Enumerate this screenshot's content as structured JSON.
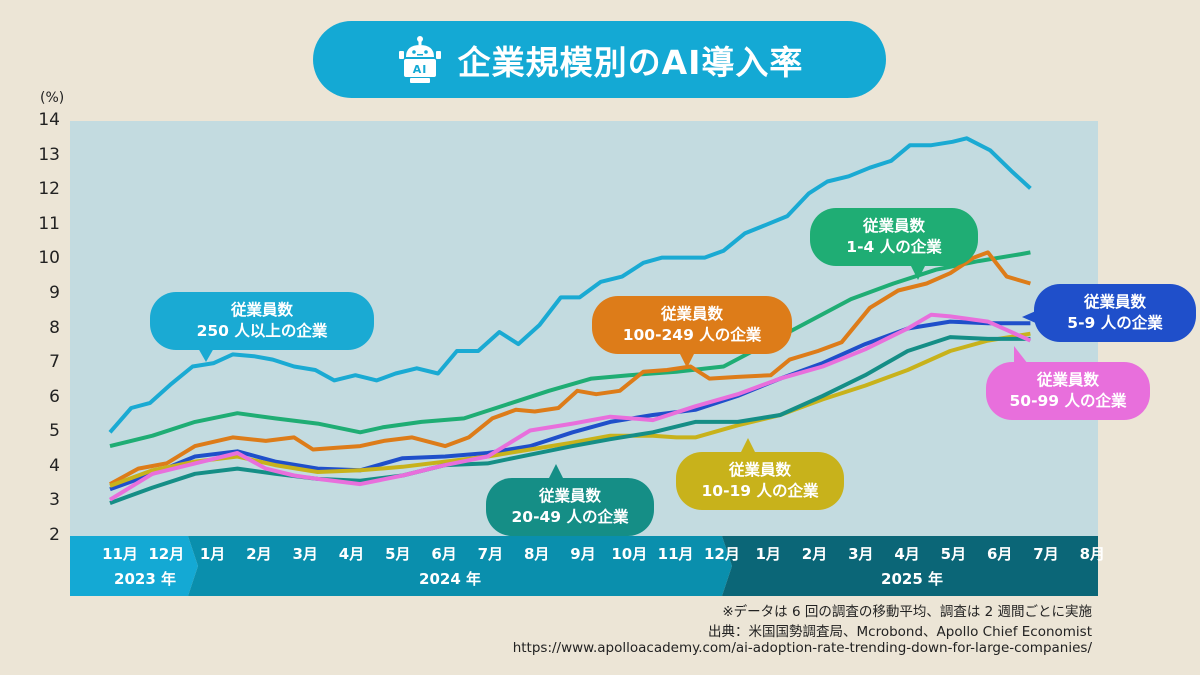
{
  "title": "企業規模別のAI導入率",
  "title_icon": "robot-ai-icon",
  "footnotes": [
    "※データは 6 回の調査の移動平均、調査は 2 週間ごとに実施",
    "出典：米国国勢調査局、Mcrobond、Apollo Chief Economist",
    "https://www.apolloacademy.com/ai-adoption-rate-trending-down-for-large-companies/"
  ],
  "chart_data": {
    "type": "line",
    "title": "企業規模別のAI導入率",
    "ylabel": "(%)",
    "xlabel": "",
    "ylim": [
      2,
      14
    ],
    "yticks": [
      14,
      13,
      12,
      11,
      10,
      9,
      8,
      7,
      6,
      5,
      4,
      3,
      2
    ],
    "grid": false,
    "x_month_labels": [
      "11月",
      "12月",
      "1月",
      "2月",
      "3月",
      "4月",
      "5月",
      "6月",
      "7月",
      "8月",
      "9月",
      "10月",
      "11月",
      "12月",
      "1月",
      "2月",
      "3月",
      "4月",
      "5月",
      "6月",
      "7月",
      "8月"
    ],
    "x_year_labels": [
      {
        "label": "2023 年",
        "months": [
          "11月",
          "12月"
        ]
      },
      {
        "label": "2024 年",
        "months": [
          "1月",
          "2月",
          "3月",
          "4月",
          "5月",
          "6月",
          "7月",
          "8月",
          "9月",
          "10月",
          "11月",
          "12月"
        ]
      },
      {
        "label": "2025 年",
        "months": [
          "1月",
          "2月",
          "3月",
          "4月",
          "5月",
          "6月",
          "7月",
          "8月"
        ]
      }
    ],
    "x_range_months": [
      0,
      21.5
    ],
    "series": [
      {
        "name": "従業員数 250 人以上の企業",
        "label_lines": [
          "従業員数",
          "250 人以上の企業"
        ],
        "color": "#1aaad3",
        "x": [
          0,
          0.45,
          0.85,
          1.3,
          1.75,
          2.2,
          2.6,
          3.05,
          3.45,
          3.9,
          4.35,
          4.75,
          5.2,
          5.65,
          6.05,
          6.5,
          6.95,
          7.35,
          7.8,
          8.25,
          8.65,
          9.1,
          9.55,
          9.95,
          10.4,
          10.85,
          11.3,
          11.7,
          12.15,
          12.6,
          13.0,
          13.45,
          13.9,
          14.35,
          14.8,
          15.2,
          15.65,
          16.1,
          16.55,
          16.95,
          17.4,
          17.85,
          18.15,
          18.65,
          19.1,
          19.5
        ],
        "values": [
          5.0,
          5.7,
          5.85,
          6.4,
          6.9,
          7.0,
          7.25,
          7.2,
          7.1,
          6.9,
          6.8,
          6.5,
          6.65,
          6.5,
          6.7,
          6.85,
          6.7,
          7.35,
          7.35,
          7.9,
          7.55,
          8.1,
          8.9,
          8.9,
          9.35,
          9.5,
          9.9,
          10.05,
          10.05,
          10.05,
          10.25,
          10.75,
          11.0,
          11.25,
          11.9,
          12.25,
          12.4,
          12.65,
          12.85,
          13.3,
          13.3,
          13.4,
          13.5,
          13.15,
          12.55,
          12.05
        ]
      },
      {
        "name": "従業員数 1-4 人の企業",
        "label_lines": [
          "従業員数",
          "1-4 人の企業"
        ],
        "color": "#1fad74",
        "x": [
          0,
          0.9,
          1.8,
          2.7,
          3.5,
          4.4,
          5.3,
          5.8,
          6.6,
          7.5,
          8.4,
          9.3,
          10.2,
          11.0,
          12.0,
          13.0,
          13.9,
          14.8,
          15.7,
          16.6,
          17.5,
          18.4,
          19.3,
          19.5
        ],
        "values": [
          4.6,
          4.9,
          5.3,
          5.55,
          5.4,
          5.25,
          5.0,
          5.15,
          5.3,
          5.4,
          5.8,
          6.2,
          6.55,
          6.65,
          6.75,
          6.9,
          7.55,
          8.2,
          8.85,
          9.3,
          9.7,
          9.95,
          10.15,
          10.2
        ]
      },
      {
        "name": "従業員数 100-249 人の企業",
        "label_lines": [
          "従業員数",
          "100-249 人の企業"
        ],
        "color": "#dd7c19",
        "x": [
          0,
          0.6,
          1.2,
          1.8,
          2.6,
          3.3,
          3.9,
          4.3,
          4.8,
          5.3,
          5.8,
          6.4,
          7.1,
          7.6,
          8.1,
          8.6,
          9.0,
          9.5,
          9.9,
          10.3,
          10.8,
          11.3,
          11.8,
          12.3,
          12.7,
          13.3,
          14.0,
          14.4,
          15.0,
          15.5,
          16.1,
          16.7,
          17.3,
          17.8,
          18.3,
          18.6,
          19.0,
          19.5
        ],
        "values": [
          3.5,
          3.95,
          4.1,
          4.6,
          4.85,
          4.75,
          4.85,
          4.5,
          4.55,
          4.6,
          4.75,
          4.85,
          4.6,
          4.85,
          5.4,
          5.65,
          5.6,
          5.7,
          6.2,
          6.1,
          6.2,
          6.75,
          6.8,
          6.9,
          6.55,
          6.6,
          6.65,
          7.1,
          7.35,
          7.6,
          8.6,
          9.1,
          9.3,
          9.6,
          10.05,
          10.2,
          9.5,
          9.3
        ]
      },
      {
        "name": "従業員数 5-9 人の企業",
        "label_lines": [
          "従業員数",
          "5-9 人の企業"
        ],
        "color": "#1f4fca",
        "x": [
          0,
          0.9,
          1.8,
          2.7,
          3.5,
          4.4,
          5.3,
          6.2,
          7.1,
          8.0,
          8.9,
          9.8,
          10.6,
          11.5,
          12.4,
          13.3,
          14.2,
          15.1,
          16.0,
          16.9,
          17.8,
          18.6,
          19.5
        ],
        "values": [
          3.35,
          3.8,
          4.3,
          4.45,
          4.15,
          3.95,
          3.9,
          4.25,
          4.3,
          4.4,
          4.6,
          5.0,
          5.3,
          5.5,
          5.65,
          6.05,
          6.55,
          7.0,
          7.55,
          8.0,
          8.2,
          8.15,
          8.15
        ]
      },
      {
        "name": "従業員数 10-19 人の企業",
        "label_lines": [
          "従業員数",
          "10-19 人の企業"
        ],
        "color": "#c8b21b",
        "x": [
          0,
          0.9,
          1.8,
          2.7,
          3.5,
          4.4,
          5.3,
          6.2,
          7.1,
          8.0,
          8.9,
          9.8,
          10.6,
          11.5,
          12.0,
          12.4,
          13.3,
          14.2,
          15.1,
          16.0,
          16.9,
          17.8,
          18.6,
          19.5
        ],
        "values": [
          3.45,
          3.9,
          4.15,
          4.3,
          4.05,
          3.85,
          3.9,
          4.0,
          4.15,
          4.3,
          4.5,
          4.7,
          4.9,
          4.9,
          4.85,
          4.85,
          5.2,
          5.5,
          5.95,
          6.35,
          6.8,
          7.35,
          7.65,
          7.85
        ]
      },
      {
        "name": "従業員数 20-49 人の企業",
        "label_lines": [
          "従業員数",
          "20-49 人の企業"
        ],
        "color": "#158e86",
        "x": [
          0,
          0.9,
          1.8,
          2.7,
          3.5,
          4.4,
          5.3,
          6.2,
          7.1,
          8.0,
          8.9,
          9.8,
          10.6,
          11.5,
          12.4,
          13.3,
          14.2,
          15.1,
          16.0,
          16.9,
          17.8,
          18.6,
          19.5
        ],
        "values": [
          2.95,
          3.4,
          3.8,
          3.95,
          3.8,
          3.65,
          3.6,
          3.75,
          4.05,
          4.1,
          4.35,
          4.6,
          4.8,
          5.0,
          5.3,
          5.3,
          5.5,
          6.05,
          6.65,
          7.35,
          7.75,
          7.7,
          7.7
        ]
      },
      {
        "name": "従業員数 50-99 人の企業",
        "label_lines": [
          "従業員数",
          "50-99 人の企業"
        ],
        "color": "#e86fdc",
        "x": [
          0,
          0.9,
          1.8,
          2.7,
          3.3,
          3.9,
          4.4,
          5.3,
          6.2,
          7.1,
          8.0,
          8.9,
          9.8,
          10.6,
          11.5,
          12.4,
          13.3,
          14.2,
          15.1,
          16.0,
          16.9,
          17.4,
          17.8,
          18.6,
          19.5
        ],
        "values": [
          3.05,
          3.8,
          4.1,
          4.4,
          3.95,
          3.75,
          3.65,
          3.5,
          3.75,
          4.05,
          4.3,
          5.05,
          5.25,
          5.45,
          5.35,
          5.75,
          6.1,
          6.55,
          6.9,
          7.4,
          8.0,
          8.4,
          8.35,
          8.2,
          7.65
        ]
      }
    ]
  }
}
